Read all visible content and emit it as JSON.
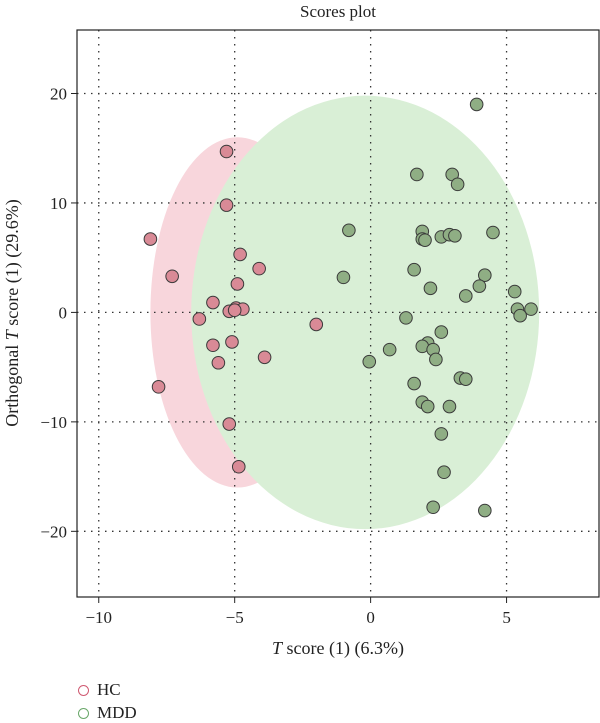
{
  "chart_data": {
    "type": "scatter",
    "title": "Scores plot",
    "xlabel_italic": "T",
    "xlabel_rest": " score (1) (6.3%)",
    "ylabel_pre": "Orthogonal ",
    "ylabel_italic": "T",
    "ylabel_post": " score (1) (29.6%)",
    "xlim": [
      -10.8,
      8.4
    ],
    "ylim": [
      -26,
      25.8
    ],
    "xticks": [
      -10,
      -5,
      0,
      5
    ],
    "xtick_labels": [
      "−10",
      "−5",
      "0",
      "5"
    ],
    "yticks": [
      20,
      10,
      0,
      -10,
      -20
    ],
    "ytick_labels": [
      "20",
      "10",
      "0",
      "−10",
      "−20"
    ],
    "grid": "dotted",
    "legend_position": "bottom-left",
    "series": [
      {
        "name": "HC",
        "color": "#d05a72",
        "marker_fill": "#d98a96",
        "ellipse_fill": "#f8d6dc",
        "ellipse": {
          "center": [
            -4.9,
            0
          ],
          "rx": 3.2,
          "ry": 16
        },
        "points": [
          [
            -5.3,
            14.7
          ],
          [
            -5.3,
            9.8
          ],
          [
            -8.1,
            6.7
          ],
          [
            -7.3,
            3.3
          ],
          [
            -4.8,
            5.3
          ],
          [
            -4.1,
            4.0
          ],
          [
            -4.9,
            2.6
          ],
          [
            -5.8,
            0.9
          ],
          [
            -6.3,
            -0.6
          ],
          [
            -5.2,
            0.1
          ],
          [
            -4.95,
            0.4
          ],
          [
            -4.7,
            0.3
          ],
          [
            -5.0,
            0.2
          ],
          [
            -5.8,
            -3.0
          ],
          [
            -5.1,
            -2.7
          ],
          [
            -5.6,
            -4.6
          ],
          [
            -3.9,
            -4.1
          ],
          [
            -2.0,
            -1.1
          ],
          [
            -7.8,
            -6.8
          ],
          [
            -5.2,
            -10.2
          ],
          [
            -4.85,
            -14.1
          ]
        ]
      },
      {
        "name": "MDD",
        "color": "#6aa86a",
        "marker_fill": "#8fae84",
        "ellipse_fill": "#d9efd6",
        "ellipse": {
          "center": [
            -0.2,
            0
          ],
          "rx": 6.4,
          "ry": 19.8
        },
        "points": [
          [
            3.9,
            19.0
          ],
          [
            1.7,
            12.6
          ],
          [
            3.0,
            12.6
          ],
          [
            3.2,
            11.7
          ],
          [
            -0.8,
            7.5
          ],
          [
            1.9,
            7.4
          ],
          [
            1.9,
            6.7
          ],
          [
            2.0,
            6.6
          ],
          [
            2.6,
            6.9
          ],
          [
            2.9,
            7.1
          ],
          [
            3.1,
            7.0
          ],
          [
            4.5,
            7.3
          ],
          [
            -1.0,
            3.2
          ],
          [
            1.6,
            3.9
          ],
          [
            4.2,
            3.4
          ],
          [
            4.0,
            2.4
          ],
          [
            2.2,
            2.2
          ],
          [
            3.5,
            1.5
          ],
          [
            5.3,
            1.9
          ],
          [
            5.4,
            0.3
          ],
          [
            5.9,
            0.3
          ],
          [
            5.5,
            -0.3
          ],
          [
            1.3,
            -0.5
          ],
          [
            2.6,
            -1.8
          ],
          [
            2.1,
            -2.8
          ],
          [
            1.9,
            -3.1
          ],
          [
            2.3,
            -3.4
          ],
          [
            2.4,
            -4.3
          ],
          [
            0.7,
            -3.4
          ],
          [
            -0.05,
            -4.5
          ],
          [
            3.3,
            -6.0
          ],
          [
            3.5,
            -6.1
          ],
          [
            1.6,
            -6.5
          ],
          [
            1.9,
            -8.2
          ],
          [
            2.1,
            -8.6
          ],
          [
            2.9,
            -8.6
          ],
          [
            2.6,
            -11.1
          ],
          [
            2.7,
            -14.6
          ],
          [
            2.3,
            -17.8
          ],
          [
            4.2,
            -18.1
          ]
        ]
      }
    ]
  },
  "legend": {
    "items": [
      {
        "label": "HC",
        "color": "#d05a72"
      },
      {
        "label": "MDD",
        "color": "#6aa86a"
      }
    ]
  }
}
